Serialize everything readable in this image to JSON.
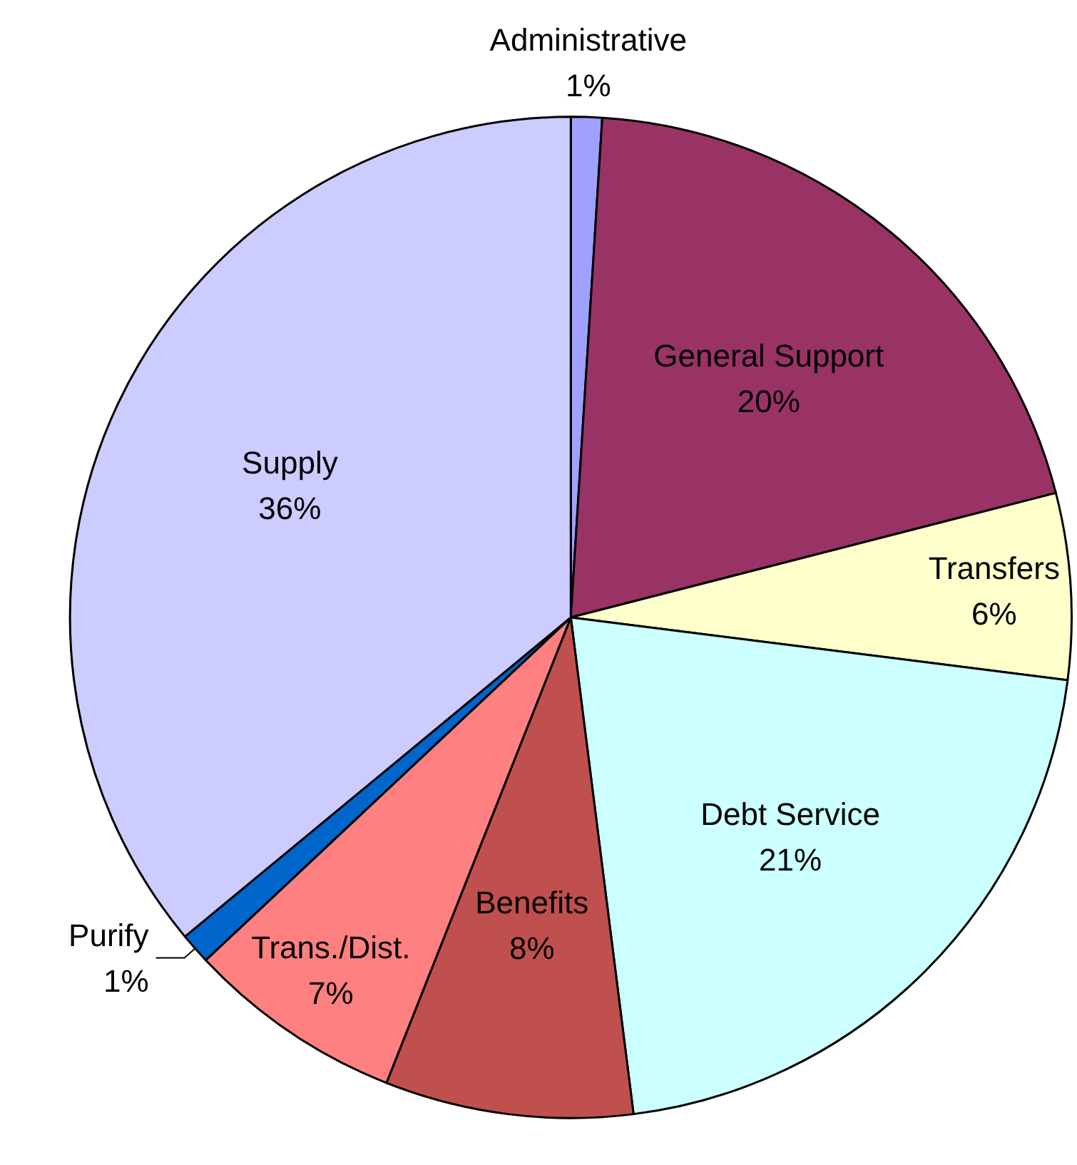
{
  "chart_data": {
    "type": "pie",
    "categories": [
      "Administrative",
      "General Support",
      "Transfers",
      "Debt Service",
      "Benefits",
      "Trans./Dist.",
      "Purify",
      "Supply"
    ],
    "values": [
      1,
      20,
      6,
      21,
      8,
      7,
      1,
      36
    ],
    "value_labels": [
      "1%",
      "20%",
      "6%",
      "21%",
      "8%",
      "7%",
      "1%",
      "36%"
    ],
    "colors": [
      "#a0a0ff",
      "#993366",
      "#ffffcc",
      "#ccffff",
      "#c0504d",
      "#ff8080",
      "#0066cc",
      "#ccccff"
    ]
  }
}
